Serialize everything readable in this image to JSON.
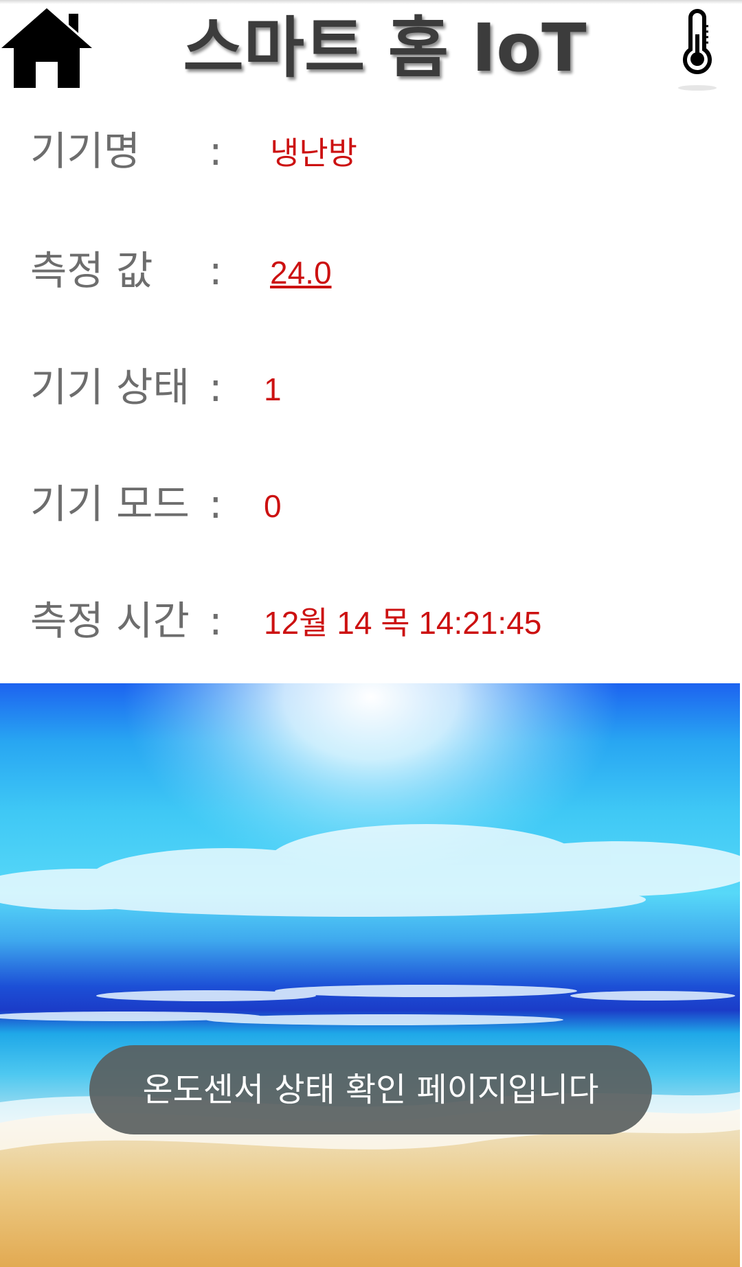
{
  "header": {
    "title": "스마트 홈 IoT",
    "home_icon": "home-icon",
    "sensor_icon": "thermometer-icon"
  },
  "info_rows": [
    {
      "label": "기기명",
      "value": "냉난방"
    },
    {
      "label": "측정 값",
      "value": "24.0"
    },
    {
      "label": "기기 상태",
      "value": "1"
    },
    {
      "label": "기기 모드",
      "value": "0"
    },
    {
      "label": "측정 시간",
      "value": "12월 14 목 14:21:45"
    }
  ],
  "colon": ":",
  "toast": {
    "message": "온도센서 상태 확인 페이지입니다"
  },
  "colors": {
    "value_text": "#cc1111",
    "label_text": "#6d6d6d",
    "toast_bg": "#5a5f5f"
  }
}
